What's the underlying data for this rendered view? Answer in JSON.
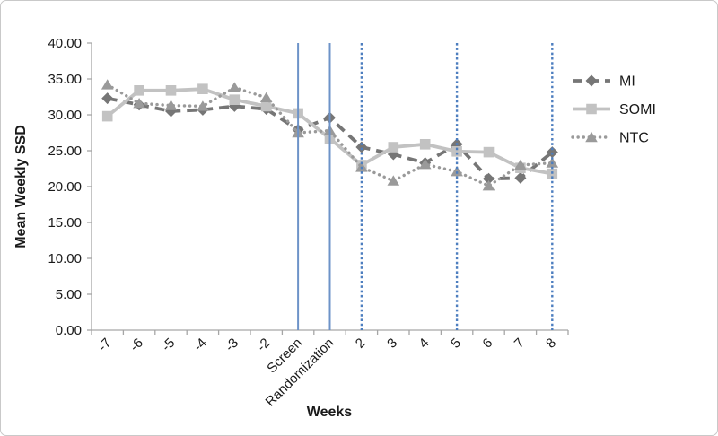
{
  "figure": {
    "background": "#ffffff",
    "border_color": "#c9c9c9"
  },
  "chart_data": {
    "type": "line",
    "title": "",
    "xlabel": "Weeks",
    "ylabel": "Mean Weekly SSD",
    "categories": [
      "-7",
      "-6",
      "-5",
      "-4",
      "-3",
      "-2",
      "Screen",
      "Randomization",
      "2",
      "3",
      "4",
      "5",
      "6",
      "7",
      "8"
    ],
    "series": [
      {
        "name": "MI",
        "color": "#767676",
        "line_style": "dashed",
        "marker": "diamond",
        "values": [
          32.3,
          31.4,
          30.5,
          30.7,
          31.2,
          30.8,
          27.9,
          29.6,
          25.5,
          24.5,
          23.3,
          25.9,
          21.1,
          21.2,
          24.8
        ]
      },
      {
        "name": "SOMI",
        "color": "#c2c2c2",
        "line_style": "solid",
        "marker": "square",
        "values": [
          29.8,
          33.4,
          33.4,
          33.6,
          32.1,
          31.2,
          30.2,
          26.7,
          23.0,
          25.5,
          25.9,
          24.9,
          24.8,
          22.6,
          21.8
        ]
      },
      {
        "name": "NTC",
        "color": "#9a9a9a",
        "line_style": "dotted",
        "marker": "triangle",
        "values": [
          34.2,
          31.6,
          31.3,
          31.2,
          33.8,
          32.4,
          27.5,
          27.8,
          22.7,
          20.8,
          23.1,
          22.1,
          20.1,
          23.0,
          23.3
        ]
      }
    ],
    "ylim": [
      0,
      40
    ],
    "yticks": [
      0,
      5,
      10,
      15,
      20,
      25,
      30,
      35,
      40
    ],
    "ytick_labels": [
      "0.00",
      "5.00",
      "10.00",
      "15.00",
      "20.00",
      "25.00",
      "30.00",
      "35.00",
      "40.00"
    ],
    "grid": false,
    "legend_position": "right",
    "vlines": [
      {
        "at": "Screen",
        "style": "solid",
        "color": "#6d93c8"
      },
      {
        "at": "Randomization",
        "style": "solid",
        "color": "#6d93c8"
      },
      {
        "at": "2",
        "style": "dotted",
        "color": "#4d7ebf"
      },
      {
        "at": "5",
        "style": "dotted",
        "color": "#4d7ebf"
      },
      {
        "at": "8",
        "style": "dotted",
        "color": "#4d7ebf"
      }
    ],
    "axis_color": "#a6a6a6",
    "text_color": "#1a1a1a"
  }
}
